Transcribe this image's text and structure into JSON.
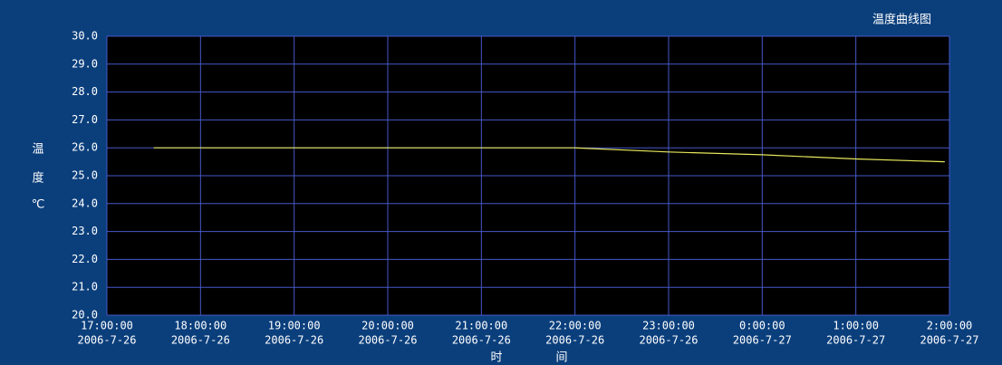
{
  "chart_data": {
    "type": "line",
    "title": "温度曲线图",
    "y_label": [
      "温",
      "度",
      "℃"
    ],
    "x_label": [
      "时",
      "间"
    ],
    "x": [
      "2006-07-26T17:30:00",
      "2006-07-26T22:00:00",
      "2006-07-26T23:00:00",
      "2006-07-27T00:00:00",
      "2006-07-27T01:00:00",
      "2006-07-27T01:57:00"
    ],
    "series": [
      {
        "name": "温度",
        "color": "#e6e65c",
        "values": [
          26.0,
          26.0,
          25.85,
          25.75,
          25.6,
          25.5
        ]
      }
    ],
    "xlim": [
      "2006-07-26T17:00:00",
      "2006-07-27T02:00:00"
    ],
    "xticks": [
      {
        "value": "2006-07-26T17:00:00",
        "label": [
          "17:00:00",
          "2006-7-26"
        ]
      },
      {
        "value": "2006-07-26T18:00:00",
        "label": [
          "18:00:00",
          "2006-7-26"
        ]
      },
      {
        "value": "2006-07-26T19:00:00",
        "label": [
          "19:00:00",
          "2006-7-26"
        ]
      },
      {
        "value": "2006-07-26T20:00:00",
        "label": [
          "20:00:00",
          "2006-7-26"
        ]
      },
      {
        "value": "2006-07-26T21:00:00",
        "label": [
          "21:00:00",
          "2006-7-26"
        ]
      },
      {
        "value": "2006-07-26T22:00:00",
        "label": [
          "22:00:00",
          "2006-7-26"
        ]
      },
      {
        "value": "2006-07-26T23:00:00",
        "label": [
          "23:00:00",
          "2006-7-26"
        ]
      },
      {
        "value": "2006-07-27T00:00:00",
        "label": [
          "0:00:00",
          "2006-7-27"
        ]
      },
      {
        "value": "2006-07-27T01:00:00",
        "label": [
          "1:00:00",
          "2006-7-27"
        ]
      },
      {
        "value": "2006-07-27T02:00:00",
        "label": [
          "2:00:00",
          "2006-7-27"
        ]
      }
    ],
    "ylim": [
      20,
      30
    ],
    "yticks": [
      {
        "value": 20,
        "label": "20.0"
      },
      {
        "value": 21,
        "label": "21.0"
      },
      {
        "value": 22,
        "label": "22.0"
      },
      {
        "value": 23,
        "label": "23.0"
      },
      {
        "value": 24,
        "label": "24.0"
      },
      {
        "value": 25,
        "label": "25.0"
      },
      {
        "value": 26,
        "label": "26.0"
      },
      {
        "value": 27,
        "label": "27.0"
      },
      {
        "value": 28,
        "label": "28.0"
      },
      {
        "value": 29,
        "label": "29.0"
      },
      {
        "value": 30,
        "label": "30.0"
      }
    ],
    "grid": true
  }
}
